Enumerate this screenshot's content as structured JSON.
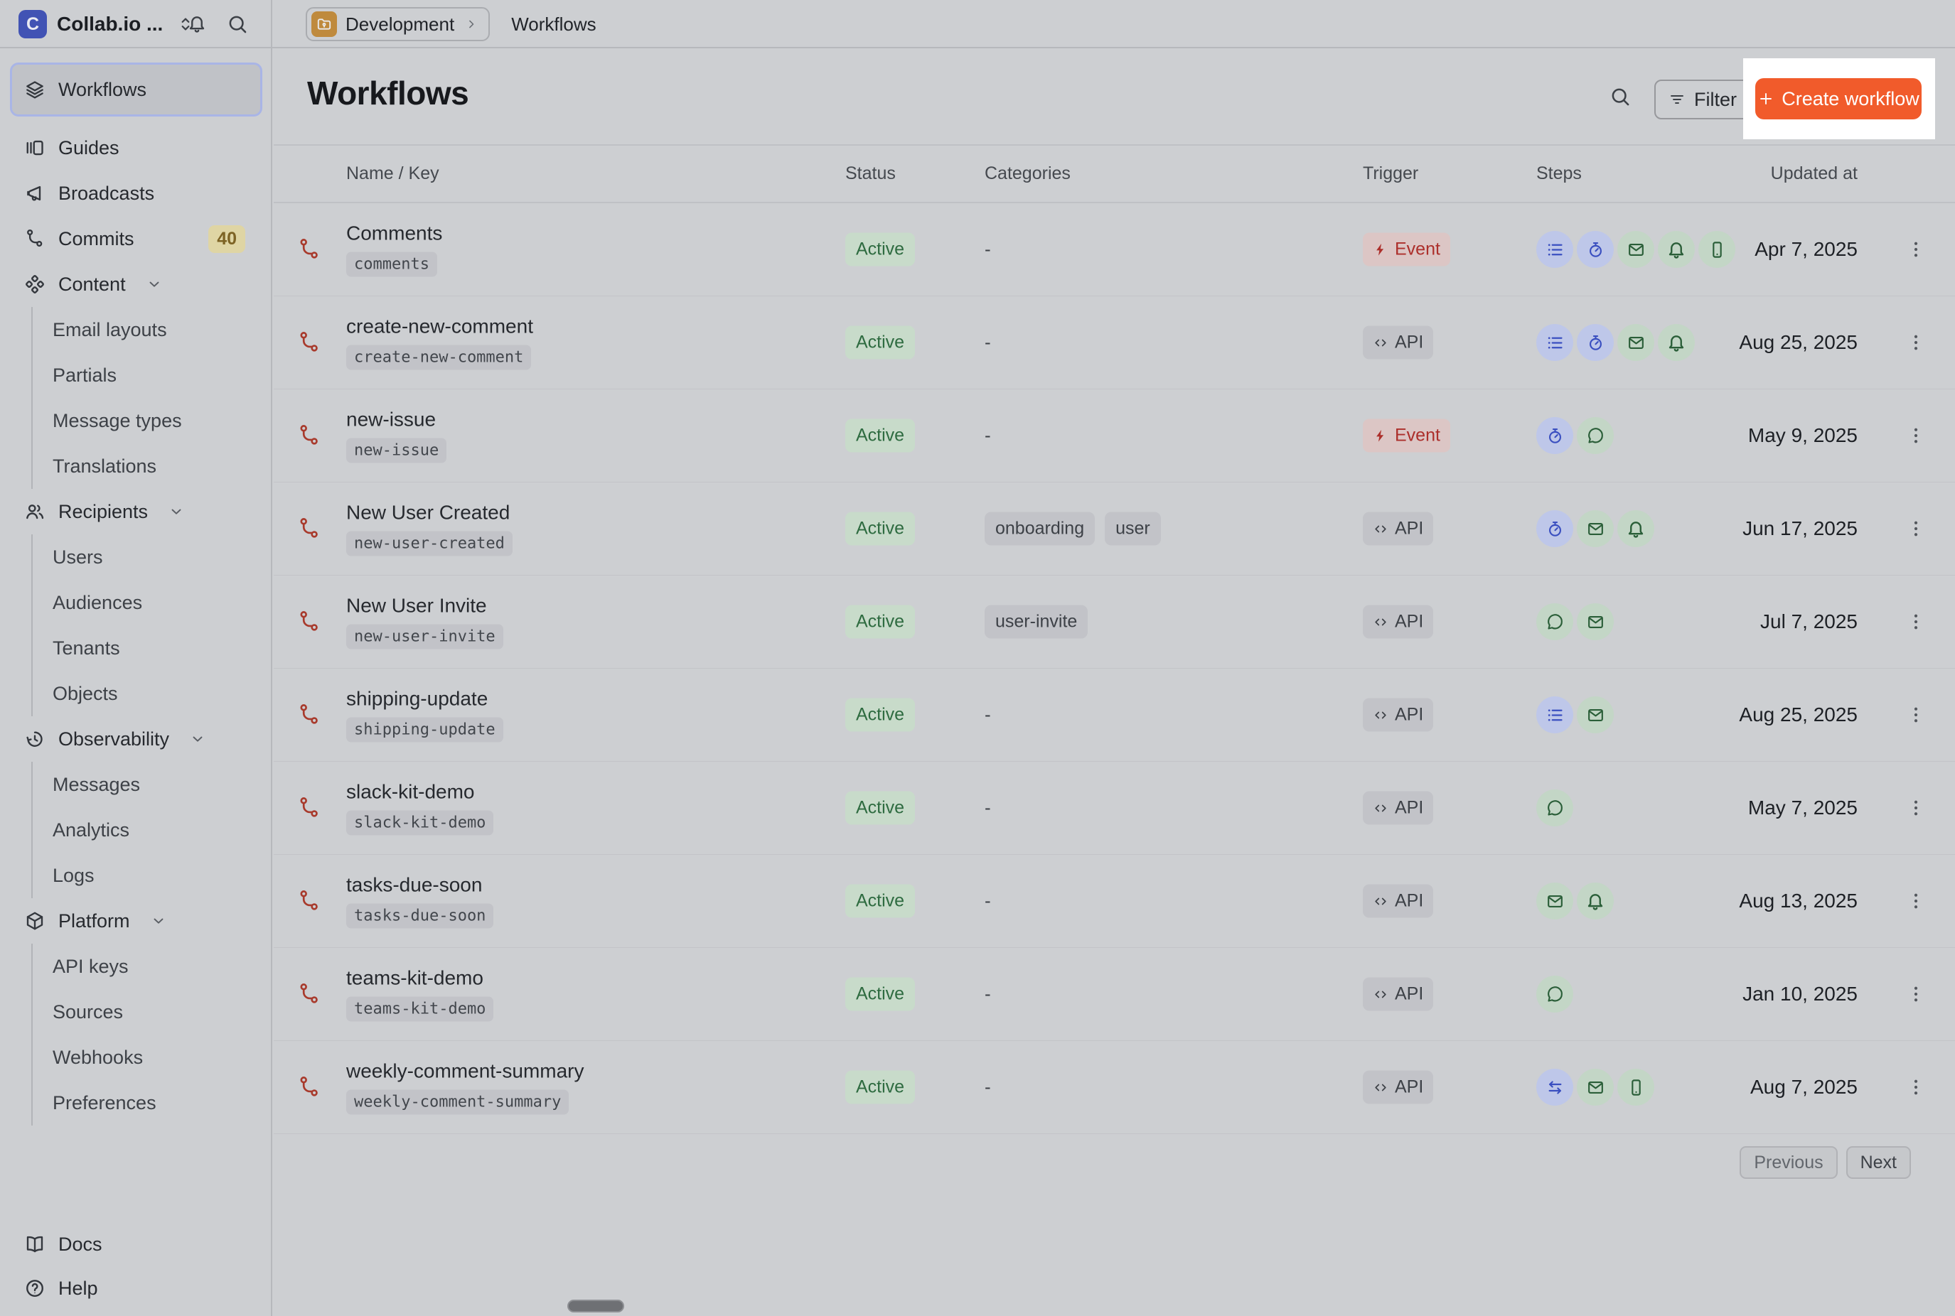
{
  "app": {
    "logo_letter": "C",
    "org_name": "Collab.io ..."
  },
  "topbar": {
    "environment": "Development",
    "page": "Workflows"
  },
  "sidebar": {
    "items": [
      {
        "label": "Workflows",
        "icon": "layers-icon",
        "selected": true
      },
      {
        "label": "Guides",
        "icon": "guides-icon"
      },
      {
        "label": "Broadcasts",
        "icon": "megaphone-icon"
      },
      {
        "label": "Commits",
        "icon": "branch-icon",
        "badge": "40"
      },
      {
        "label": "Content",
        "icon": "content-icon",
        "expandable": true,
        "children": [
          "Email layouts",
          "Partials",
          "Message types",
          "Translations"
        ]
      },
      {
        "label": "Recipients",
        "icon": "users-icon",
        "expandable": true,
        "children": [
          "Users",
          "Audiences",
          "Tenants",
          "Objects"
        ]
      },
      {
        "label": "Observability",
        "icon": "history-icon",
        "expandable": true,
        "children": [
          "Messages",
          "Analytics",
          "Logs"
        ]
      },
      {
        "label": "Platform",
        "icon": "package-icon",
        "expandable": true,
        "children": [
          "API keys",
          "Sources",
          "Webhooks",
          "Preferences"
        ]
      }
    ],
    "footer": [
      {
        "label": "Docs",
        "icon": "book-icon"
      },
      {
        "label": "Help",
        "icon": "help-icon"
      }
    ]
  },
  "header": {
    "title": "Workflows",
    "filter_label": "Filter",
    "create_label": "Create workflow"
  },
  "table": {
    "columns": [
      "Name / Key",
      "Status",
      "Categories",
      "Trigger",
      "Steps",
      "Updated at"
    ],
    "rows": [
      {
        "name": "Comments",
        "key": "comments",
        "status": "Active",
        "categories": [],
        "trigger": {
          "type": "event",
          "label": "Event"
        },
        "steps": [
          "batch",
          "delay",
          "email",
          "in_app",
          "push"
        ],
        "updated_at": "Apr 7, 2025"
      },
      {
        "name": "create-new-comment",
        "key": "create-new-comment",
        "status": "Active",
        "categories": [],
        "trigger": {
          "type": "api",
          "label": "API"
        },
        "steps": [
          "batch",
          "delay",
          "email",
          "in_app"
        ],
        "updated_at": "Aug 25, 2025"
      },
      {
        "name": "new-issue",
        "key": "new-issue",
        "status": "Active",
        "categories": [],
        "trigger": {
          "type": "event",
          "label": "Event"
        },
        "steps": [
          "delay",
          "chat"
        ],
        "updated_at": "May 9, 2025"
      },
      {
        "name": "New User Created",
        "key": "new-user-created",
        "status": "Active",
        "categories": [
          "onboarding",
          "user"
        ],
        "trigger": {
          "type": "api",
          "label": "API"
        },
        "steps": [
          "delay",
          "email",
          "in_app"
        ],
        "updated_at": "Jun 17, 2025"
      },
      {
        "name": "New User Invite",
        "key": "new-user-invite",
        "status": "Active",
        "categories": [
          "user-invite"
        ],
        "trigger": {
          "type": "api",
          "label": "API"
        },
        "steps": [
          "chat",
          "email"
        ],
        "updated_at": "Jul 7, 2025"
      },
      {
        "name": "shipping-update",
        "key": "shipping-update",
        "status": "Active",
        "categories": [],
        "trigger": {
          "type": "api",
          "label": "API"
        },
        "steps": [
          "batch",
          "email"
        ],
        "updated_at": "Aug 25, 2025"
      },
      {
        "name": "slack-kit-demo",
        "key": "slack-kit-demo",
        "status": "Active",
        "categories": [],
        "trigger": {
          "type": "api",
          "label": "API"
        },
        "steps": [
          "chat"
        ],
        "updated_at": "May 7, 2025"
      },
      {
        "name": "tasks-due-soon",
        "key": "tasks-due-soon",
        "status": "Active",
        "categories": [],
        "trigger": {
          "type": "api",
          "label": "API"
        },
        "steps": [
          "email",
          "in_app"
        ],
        "updated_at": "Aug 13, 2025"
      },
      {
        "name": "teams-kit-demo",
        "key": "teams-kit-demo",
        "status": "Active",
        "categories": [],
        "trigger": {
          "type": "api",
          "label": "API"
        },
        "steps": [
          "chat"
        ],
        "updated_at": "Jan 10, 2025"
      },
      {
        "name": "weekly-comment-summary",
        "key": "weekly-comment-summary",
        "status": "Active",
        "categories": [],
        "trigger": {
          "type": "api",
          "label": "API"
        },
        "steps": [
          "fetch",
          "email",
          "push"
        ],
        "updated_at": "Aug 7, 2025"
      }
    ],
    "empty_categories_placeholder": "-"
  },
  "pagination": {
    "previous": "Previous",
    "next": "Next"
  },
  "colors": {
    "accent_orange": "#f15b2b",
    "spotlight_white": "#ffffff",
    "status_active_bg": "#c8dbca",
    "status_active_text": "#2e6b40",
    "trigger_event_bg": "#dcc6c5",
    "trigger_event_text": "#ac2f2b",
    "step_blue": "#3a4fc0",
    "step_green": "#2a5e38",
    "workflow_icon_red": "#a83a2c",
    "commits_badge_bg": "#dfd5a4",
    "commits_badge_text": "#7d6324",
    "logo_blue": "#4153b4",
    "env_folder_amber": "#bf8a3d"
  }
}
